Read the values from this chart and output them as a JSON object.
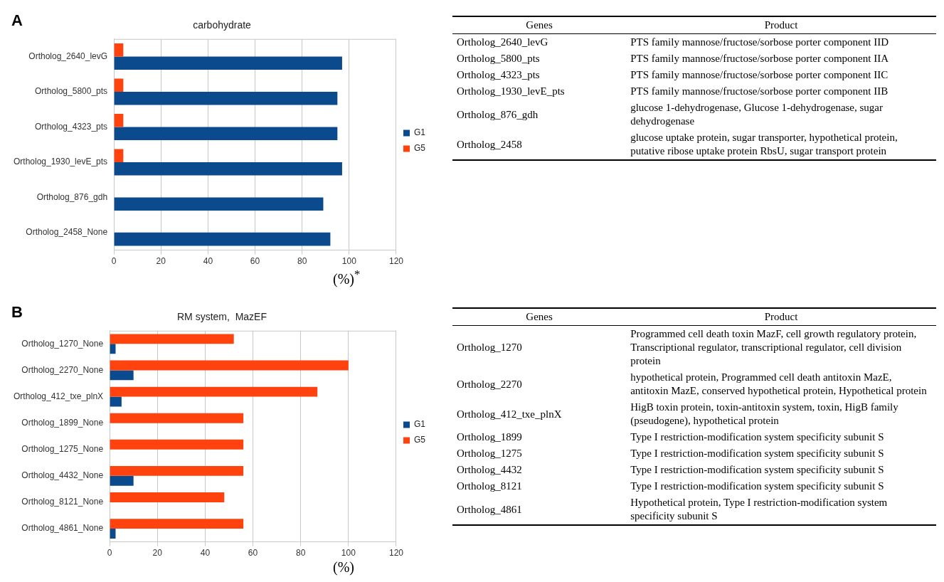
{
  "chart_data": [
    {
      "type": "bar",
      "orientation": "horizontal",
      "title": "carbohydrate",
      "xlabel": "(%)$^{*}$",
      "annotations": [
        "A"
      ],
      "categories": [
        "Ortholog_2640_levG",
        "Ortholog_5800_pts",
        "Ortholog_4323_pts",
        "Ortholog_1930_levE_pts",
        "Ortholog_876_gdh",
        "Ortholog_2458_None"
      ],
      "series": [
        {
          "name": "G1",
          "color": "#0b4a8c",
          "values": [
            97,
            95,
            95,
            97,
            89,
            92
          ]
        },
        {
          "name": "G5",
          "color": "#ff420e",
          "values": [
            4,
            4,
            4,
            4,
            0,
            0
          ]
        }
      ],
      "xlim": [
        0,
        120
      ],
      "xticks": [
        0,
        20,
        40,
        60,
        80,
        100,
        120
      ],
      "grid": "x",
      "legend": "right"
    },
    {
      "type": "other",
      "annotations": [
        "Genes",
        "Product",
        "Ortholog_2640_levG",
        "PTS family mannose/fructose/sorbose porter component IID",
        "Ortholog_5800_pts",
        "PTS family mannose/fructose/sorbose porter component IIA",
        "Ortholog_4323_pts",
        "PTS family mannose/fructose/sorbose porter component IIC",
        "Ortholog_1930_levE_pts",
        "PTS family mannose/fructose/sorbose porter component IIB",
        "Ortholog_876_gdh",
        "glucose 1-dehydrogenase, Glucose 1-dehydrogenase, sugar dehydrogenase",
        "Ortholog_2458",
        "glucose uptake protein, sugar transporter, hypothetical protein, putative ribose uptake protein RbsU, sugar transport protein"
      ]
    },
    {
      "type": "bar",
      "orientation": "horizontal",
      "title": "RM system,  MazEF",
      "xlabel": "(%)",
      "annotations": [
        "B"
      ],
      "categories": [
        "Ortholog_1270_None",
        "Ortholog_2270_None",
        "Ortholog_412_txe_plnX",
        "Ortholog_1899_None",
        "Ortholog_1275_None",
        "Ortholog_4432_None",
        "Ortholog_8121_None",
        "Ortholog_4861_None"
      ],
      "series": [
        {
          "name": "G1",
          "color": "#0b4a8c",
          "values": [
            2.5,
            10,
            5,
            0,
            0,
            10,
            0,
            2.5
          ]
        },
        {
          "name": "G5",
          "color": "#ff420e",
          "values": [
            52,
            100,
            87,
            56,
            56,
            56,
            48,
            56
          ]
        }
      ],
      "xlim": [
        0,
        120
      ],
      "xticks": [
        0,
        20,
        40,
        60,
        80,
        100,
        120
      ],
      "grid": "x",
      "legend": "right"
    },
    {
      "type": "other",
      "annotations": [
        "Genes",
        "Product",
        "Ortholog_1270",
        "Programmed cell death toxin MazF, cell growth regulatory protein, Transcriptional regulator, transcriptional regulator, cell division protein",
        "Ortholog_2270",
        "hypothetical protein, Programmed cell death antitoxin MazE, antitoxin MazE, conserved hypothetical protein, Hypothetical protein",
        "Ortholog_412_txe_plnX",
        "HigB toxin protein, toxin-antitoxin system, toxin, HigB family (pseudogene), hypothetical protein",
        "Ortholog_1899",
        "Type I restriction-modification system specificity subunit S",
        "Ortholog_1275",
        "Type I restriction-modification system specificity subunit S",
        "Ortholog_4432",
        "Type I restriction-modification system specificity subunit S",
        "Ortholog_8121",
        "Type I restriction-modification system specificity subunit S",
        "Ortholog_4861",
        "Hypothetical protein, Type I restriction-modification system specificity subunit S"
      ]
    }
  ]
}
